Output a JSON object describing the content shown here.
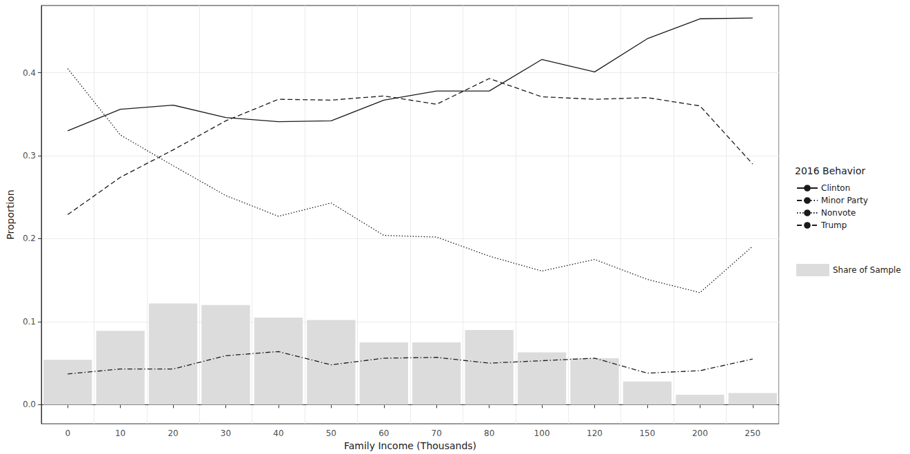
{
  "chart_data": {
    "type": "line",
    "legend_title": "2016 Behavior",
    "x_label": "Family Income (Thousands)",
    "y_label": "Proportion",
    "categories": [
      "0",
      "10",
      "20",
      "30",
      "40",
      "50",
      "60",
      "70",
      "80",
      "100",
      "120",
      "150",
      "200",
      "250"
    ],
    "ylim": [
      -0.023,
      0.481
    ],
    "yticks": [
      {
        "value": 0,
        "label": "0.0"
      },
      {
        "value": 0.1,
        "label": "0.1"
      },
      {
        "value": 0.2,
        "label": "0.2"
      },
      {
        "value": 0.3,
        "label": "0.3"
      },
      {
        "value": 0.4,
        "label": "0.4"
      }
    ],
    "grid": true,
    "legend": "right",
    "series": [
      {
        "name": "Clinton",
        "type": "line",
        "color": "#1a1a1a",
        "line_style": "solid",
        "values": [
          0.33,
          0.356,
          0.361,
          0.346,
          0.341,
          0.342,
          0.367,
          0.378,
          0.378,
          0.416,
          0.401,
          0.441,
          0.465,
          0.466
        ]
      },
      {
        "name": "Minor Party",
        "type": "line",
        "color": "#1a1a1a",
        "line_style": "dashdot",
        "values": [
          0.037,
          0.043,
          0.043,
          0.059,
          0.064,
          0.048,
          0.056,
          0.057,
          0.05,
          0.053,
          0.056,
          0.038,
          0.041,
          0.055
        ]
      },
      {
        "name": "Nonvote",
        "type": "line",
        "color": "#1a1a1a",
        "line_style": "dotted",
        "values": [
          0.405,
          0.325,
          0.288,
          0.252,
          0.227,
          0.243,
          0.204,
          0.202,
          0.179,
          0.161,
          0.175,
          0.151,
          0.135,
          0.191
        ]
      },
      {
        "name": "Trump",
        "type": "line",
        "color": "#1a1a1a",
        "line_style": "dashed",
        "values": [
          0.229,
          0.274,
          0.307,
          0.342,
          0.368,
          0.367,
          0.372,
          0.362,
          0.393,
          0.371,
          0.368,
          0.37,
          0.36,
          0.29
        ]
      },
      {
        "name": "Share of Sample",
        "type": "bar",
        "color": "#dcdcdc",
        "values": [
          0.054,
          0.089,
          0.122,
          0.12,
          0.105,
          0.102,
          0.075,
          0.075,
          0.09,
          0.063,
          0.056,
          0.028,
          0.012,
          0.014
        ]
      }
    ]
  }
}
